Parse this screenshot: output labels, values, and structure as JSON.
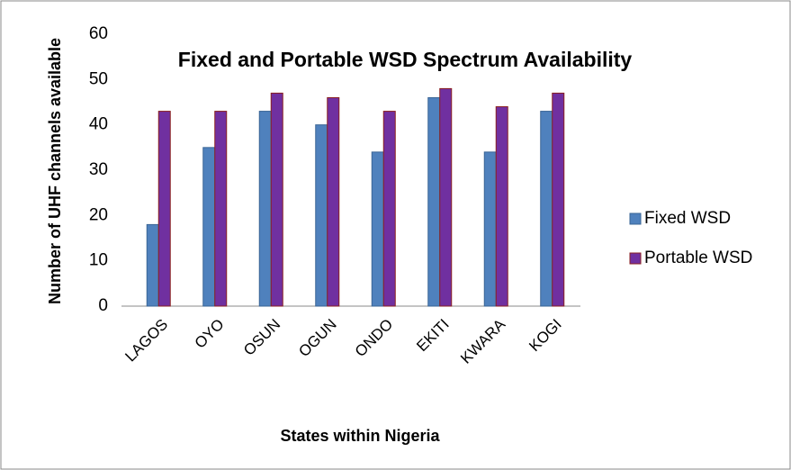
{
  "chart_data": {
    "type": "bar",
    "title": "Fixed and Portable WSD Spectrum Availability",
    "x_label": "States within Nigeria",
    "y_label": "Number of UHF channels available",
    "categories": [
      "LAGOS",
      "OYO",
      "OSUN",
      "OGUN",
      "ONDO",
      "EKITI",
      "KWARA",
      "KOGI"
    ],
    "series": [
      {
        "name": "Fixed WSD",
        "color": "#4f81bd",
        "values": [
          18,
          35,
          43,
          40,
          34,
          46,
          34,
          43
        ]
      },
      {
        "name": "Portable WSD",
        "color": "#7030a0",
        "values": [
          43,
          43,
          47,
          46,
          43,
          48,
          44,
          47
        ]
      }
    ],
    "ylim": [
      0,
      60
    ],
    "yticks": [
      0,
      10,
      20,
      30,
      40,
      50,
      60
    ],
    "grid": false,
    "legend": "right"
  }
}
